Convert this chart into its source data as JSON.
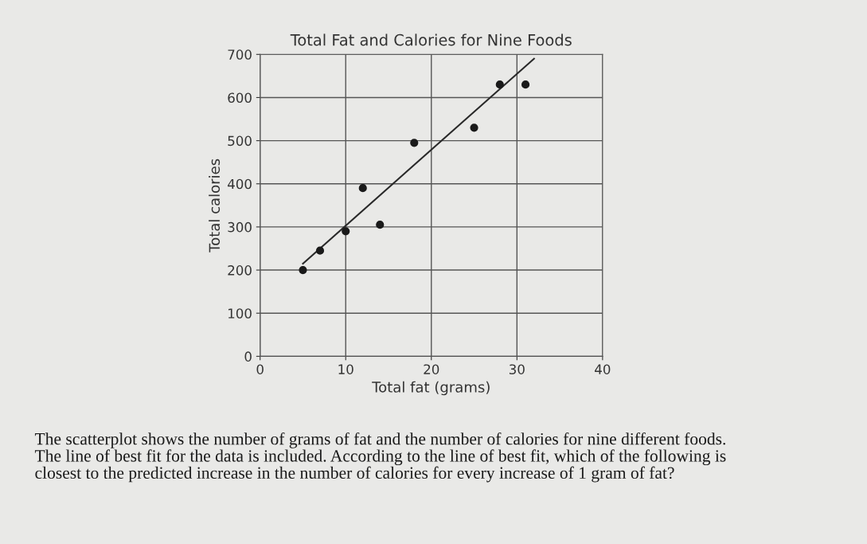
{
  "chart_data": {
    "type": "scatter",
    "title": "Total Fat and Calories for Nine Foods",
    "xlabel": "Total fat (grams)",
    "ylabel": "Total calories",
    "series": [
      {
        "marker": "circle",
        "color": "#1a1a1a",
        "x": [
          5,
          7,
          10,
          12,
          14,
          18,
          25,
          28,
          31
        ],
        "values": [
          200,
          245,
          290,
          390,
          305,
          495,
          530,
          630,
          630
        ]
      },
      {
        "type": "line",
        "color": "#2a2a2a",
        "x": [
          5,
          32
        ],
        "values": [
          215,
          690
        ]
      }
    ],
    "xlim": [
      0,
      40
    ],
    "ylim": [
      0,
      700
    ],
    "xticks": [
      0,
      10,
      20,
      30,
      40
    ],
    "yticks": [
      0,
      100,
      200,
      300,
      400,
      500,
      600,
      700
    ],
    "grid": true,
    "annotations": [
      "The scatterplot shows the number of grams of fat and the number of calories for nine different foods. The line of best fit for the data is included. According to the line of best fit, which of the following is closest to the predicted increase in the number of calories for every increase of 1 gram of fat?"
    ]
  }
}
